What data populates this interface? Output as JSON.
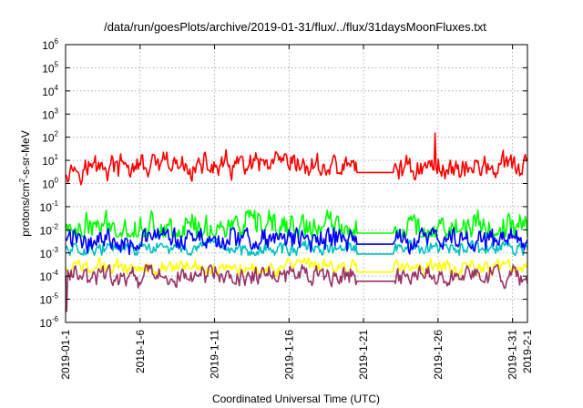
{
  "chart_data": {
    "type": "line",
    "title": "/data/run/goesPlots/archive/2019-01-31/flux/../flux/31daysMoonFluxes.txt",
    "xlabel": "Coordinated Universal Time (UTC)",
    "ylabel_parts": [
      "protons/cm",
      "2",
      "-s-sr-MeV"
    ],
    "y_scale": "log",
    "ylim": [
      1e-06,
      1000000.0
    ],
    "xlim": [
      "2019-01-01",
      "2019-02-01"
    ],
    "grid": true,
    "legend": "none",
    "x_ticks": [
      {
        "day": 0,
        "label": "2019-01-1"
      },
      {
        "day": 5,
        "label": "2019-1-6"
      },
      {
        "day": 10,
        "label": "2019-1-11"
      },
      {
        "day": 15,
        "label": "2019-1-16"
      },
      {
        "day": 20,
        "label": "2019-1-21"
      },
      {
        "day": 25,
        "label": "2019-1-26"
      },
      {
        "day": 30,
        "label": "2019-1-31"
      },
      {
        "day": 31,
        "label": "2019-2-1"
      }
    ],
    "y_ticks": [
      {
        "exp": -6,
        "base": "10",
        "sup": "-6"
      },
      {
        "exp": -5,
        "base": "10",
        "sup": "-5"
      },
      {
        "exp": -4,
        "base": "10",
        "sup": "-4"
      },
      {
        "exp": -3,
        "base": "10",
        "sup": "-3"
      },
      {
        "exp": -2,
        "base": "10",
        "sup": "-2"
      },
      {
        "exp": -1,
        "base": "10",
        "sup": "-1"
      },
      {
        "exp": 0,
        "base": "10",
        "sup": "0"
      },
      {
        "exp": 1,
        "base": "10",
        "sup": "1"
      },
      {
        "exp": 2,
        "base": "10",
        "sup": "2"
      },
      {
        "exp": 3,
        "base": "10",
        "sup": "3"
      },
      {
        "exp": 4,
        "base": "10",
        "sup": "4"
      },
      {
        "exp": 5,
        "base": "10",
        "sup": "5"
      },
      {
        "exp": 6,
        "base": "10",
        "sup": "6"
      }
    ],
    "gap": [
      19.5,
      22.0
    ],
    "series": [
      {
        "color": "#ff0000",
        "median": 5,
        "spread": 0.35,
        "spikes": [
          [
            24.8,
            150
          ],
          [
            20.3,
            1.5
          ]
        ],
        "min": 0.3,
        "max": 30
      },
      {
        "color": "#00ff00",
        "median": 0.012,
        "spread": 0.45,
        "spikes": [],
        "min": 0.005,
        "max": 0.07
      },
      {
        "color": "#00c0c0",
        "median": 0.0015,
        "spread": 0.2,
        "spikes": [],
        "min": 0.0008,
        "max": 0.004
      },
      {
        "color": "#0000ff",
        "median": 0.004,
        "spread": 0.35,
        "spikes": [],
        "min": 0.0008,
        "max": 0.012
      },
      {
        "color": "#ffff00",
        "median": 0.00025,
        "spread": 0.2,
        "spikes": [],
        "min": 0.0001,
        "max": 0.0008
      },
      {
        "color": "#993366",
        "median": 0.0001,
        "spread": 0.3,
        "spikes": [
          [
            0.05,
            3e-06
          ]
        ],
        "min": 3e-05,
        "max": 0.0003
      }
    ]
  }
}
